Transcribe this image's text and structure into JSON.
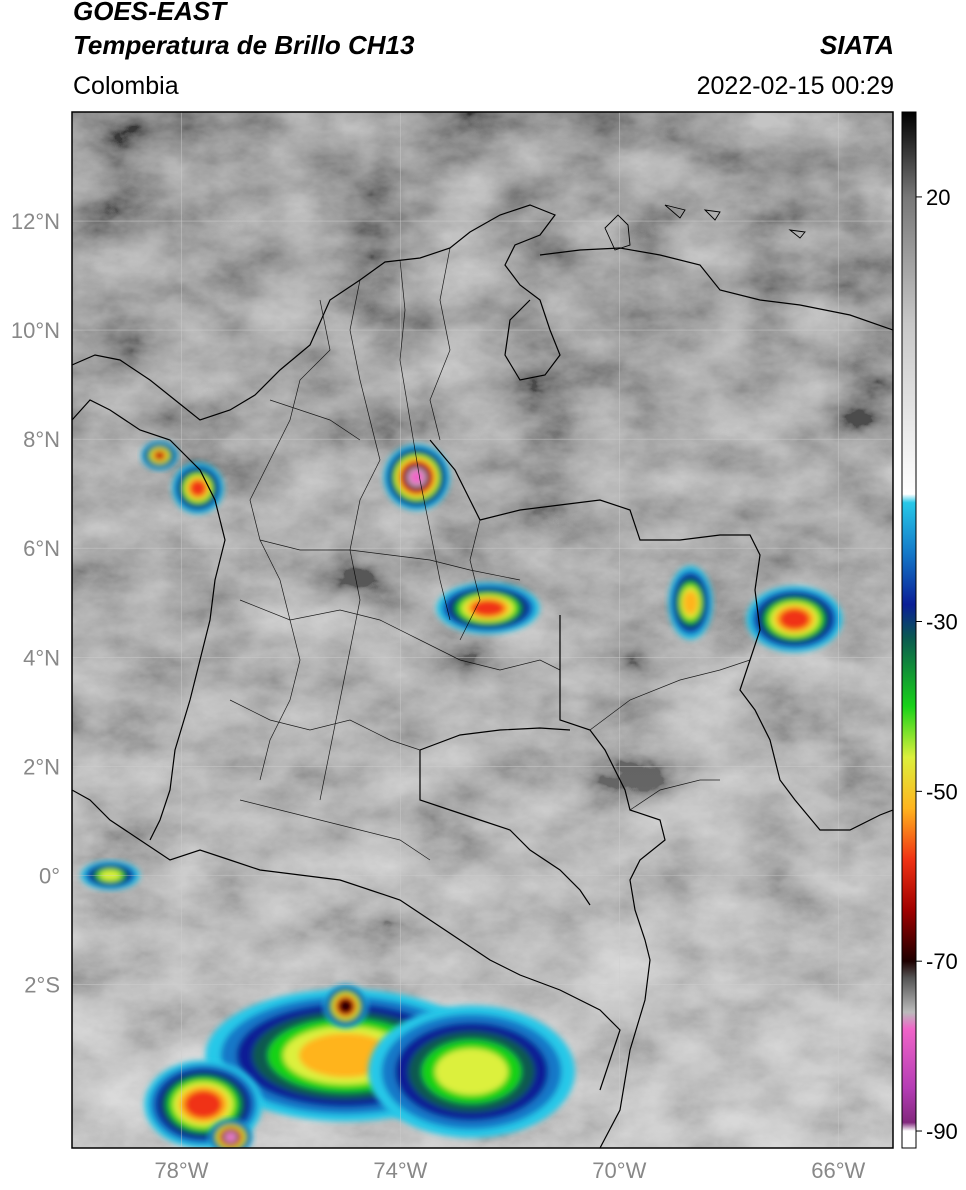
{
  "header": {
    "satellite": "GOES-EAST",
    "product": "Temperatura de Brillo CH13",
    "brand": "SIATA",
    "region": "Colombia",
    "datetime": "2022-02-15 00:29"
  },
  "map": {
    "extent": {
      "lon_min": -80.0,
      "lon_max": -65.0,
      "lat_min": -5.0,
      "lat_max": 14.0
    },
    "lat_ticks": [
      {
        "value": 12,
        "label": "12°N"
      },
      {
        "value": 10,
        "label": "10°N"
      },
      {
        "value": 8,
        "label": "8°N"
      },
      {
        "value": 6,
        "label": "6°N"
      },
      {
        "value": 4,
        "label": "4°N"
      },
      {
        "value": 2,
        "label": "2°N"
      },
      {
        "value": 0,
        "label": "0°"
      },
      {
        "value": -2,
        "label": "2°S"
      }
    ],
    "lon_ticks": [
      {
        "value": -78,
        "label": "78°W"
      },
      {
        "value": -74,
        "label": "74°W"
      },
      {
        "value": -70,
        "label": "70°W"
      },
      {
        "value": -66,
        "label": "66°W"
      }
    ],
    "storm_cells": [
      {
        "lon": -78.4,
        "lat": 7.7,
        "rx": 0.25,
        "ry": 0.2,
        "level": -65
      },
      {
        "lon": -77.7,
        "lat": 7.1,
        "rx": 0.35,
        "ry": 0.35,
        "level": -62
      },
      {
        "lon": -73.7,
        "lat": 7.3,
        "rx": 0.45,
        "ry": 0.45,
        "level": -80
      },
      {
        "lon": -72.4,
        "lat": 4.9,
        "rx": 0.7,
        "ry": 0.35,
        "level": -60
      },
      {
        "lon": -68.7,
        "lat": 5.0,
        "rx": 0.3,
        "ry": 0.5,
        "level": -58
      },
      {
        "lon": -66.8,
        "lat": 4.7,
        "rx": 0.65,
        "ry": 0.45,
        "level": -62
      },
      {
        "lon": -79.3,
        "lat": 0.0,
        "rx": 0.4,
        "ry": 0.2,
        "level": -52
      },
      {
        "lon": -75.0,
        "lat": -3.3,
        "rx": 1.9,
        "ry": 0.9,
        "level": -55
      },
      {
        "lon": -75.0,
        "lat": -2.4,
        "rx": 0.3,
        "ry": 0.3,
        "level": -72
      },
      {
        "lon": -72.7,
        "lat": -3.6,
        "rx": 1.4,
        "ry": 0.9,
        "level": -52
      },
      {
        "lon": -77.6,
        "lat": -4.2,
        "rx": 0.8,
        "ry": 0.6,
        "level": -60
      },
      {
        "lon": -77.1,
        "lat": -4.8,
        "rx": 0.3,
        "ry": 0.25,
        "level": -82
      }
    ]
  },
  "colorbar": {
    "range": [
      -92,
      30
    ],
    "ticks": [
      {
        "value": 20,
        "label": "20"
      },
      {
        "value": -30,
        "label": "-30"
      },
      {
        "value": -50,
        "label": "-50"
      },
      {
        "value": -70,
        "label": "-70"
      },
      {
        "value": -90,
        "label": "-90"
      }
    ],
    "stops": [
      {
        "value": 30,
        "color": "#000000"
      },
      {
        "value": 27,
        "color": "#222222"
      },
      {
        "value": 20,
        "color": "#777777"
      },
      {
        "value": 5,
        "color": "#c8c8c8"
      },
      {
        "value": -15,
        "color": "#ffffff"
      },
      {
        "value": -16,
        "color": "#27c8e8"
      },
      {
        "value": -22,
        "color": "#1478c8"
      },
      {
        "value": -28,
        "color": "#0a1e96"
      },
      {
        "value": -32,
        "color": "#0a5a50"
      },
      {
        "value": -40,
        "color": "#19d219"
      },
      {
        "value": -46,
        "color": "#dcf03c"
      },
      {
        "value": -52,
        "color": "#ffb41e"
      },
      {
        "value": -58,
        "color": "#f03214"
      },
      {
        "value": -64,
        "color": "#a00000"
      },
      {
        "value": -70,
        "color": "#1e0000"
      },
      {
        "value": -72,
        "color": "#555555"
      },
      {
        "value": -76,
        "color": "#bbbbbb"
      },
      {
        "value": -78,
        "color": "#f064c8"
      },
      {
        "value": -85,
        "color": "#b43cb4"
      },
      {
        "value": -89,
        "color": "#82287d"
      },
      {
        "value": -90,
        "color": "#ffffff"
      }
    ]
  }
}
